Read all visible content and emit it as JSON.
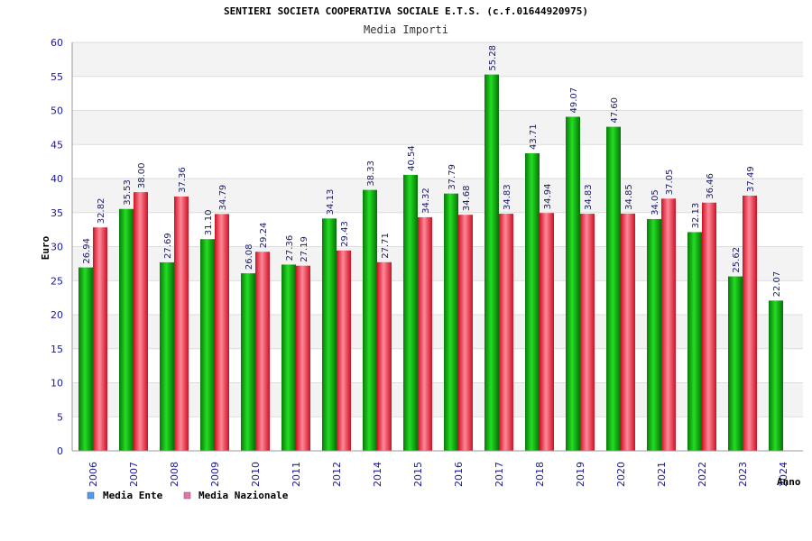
{
  "chart_data": {
    "type": "bar",
    "title": "SENTIERI SOCIETA COOPERATIVA SOCIALE E.T.S. (c.f.01644920975)",
    "subtitle": "Media Importi",
    "ylabel": "Euro",
    "xlabel": "Anno",
    "ylim": [
      0,
      60
    ],
    "ytick_step": 5,
    "grid": true,
    "legend_position": "bottom-left",
    "categories": [
      "2006",
      "2007",
      "2008",
      "2009",
      "2010",
      "2011",
      "2012",
      "2014",
      "2015",
      "2016",
      "2017",
      "2018",
      "2019",
      "2020",
      "2021",
      "2022",
      "2023",
      "2024"
    ],
    "series": [
      {
        "name": "Media Ente",
        "legend_color": "#5599ee",
        "bar_color": "#11bb11",
        "values": [
          26.94,
          35.53,
          27.69,
          31.1,
          26.08,
          27.36,
          34.13,
          38.33,
          40.54,
          37.79,
          55.28,
          43.71,
          49.07,
          47.6,
          34.05,
          32.13,
          25.62,
          22.07
        ],
        "labels": [
          "26.94",
          "35.53",
          "27.69",
          "31.10",
          "26.08",
          "27.36",
          "34.13",
          "38.33",
          "40.54",
          "37.79",
          "55.28",
          "43.71",
          "49.07",
          "47.60",
          "34.05",
          "32.13",
          "25.62",
          "22.07"
        ]
      },
      {
        "name": "Media Nazionale",
        "legend_color": "#dd77aa",
        "bar_color": "#ee3344",
        "values": [
          32.82,
          38.0,
          37.36,
          34.79,
          29.24,
          27.19,
          29.43,
          27.71,
          34.32,
          34.68,
          34.83,
          34.94,
          34.83,
          34.85,
          37.05,
          36.46,
          37.49,
          null
        ],
        "labels": [
          "32.82",
          "38.00",
          "37.36",
          "34.79",
          "29.24",
          "27.19",
          "29.43",
          "27.71",
          "34.32",
          "34.68",
          "34.83",
          "34.94",
          "34.83",
          "34.85",
          "37.05",
          "36.46",
          "37.49",
          null
        ]
      }
    ]
  }
}
